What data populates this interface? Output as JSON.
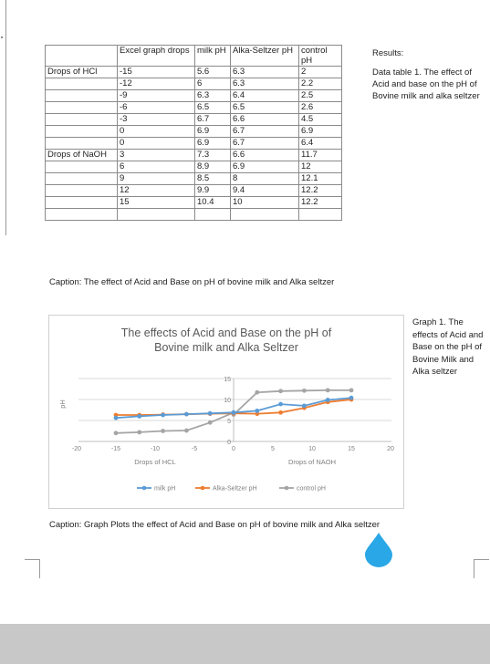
{
  "table": {
    "header": [
      "",
      "Excel graph drops",
      "milk pH",
      "Alka-Seltzer pH",
      "control pH"
    ],
    "rows": [
      [
        "Drops of HCl",
        "-15",
        "5.6",
        "6.3",
        "2"
      ],
      [
        "",
        "-12",
        "6",
        "6.3",
        "2.2"
      ],
      [
        "",
        "-9",
        "6.3",
        "6.4",
        "2.5"
      ],
      [
        "",
        "-6",
        "6.5",
        "6.5",
        "2.6"
      ],
      [
        "",
        "-3",
        "6.7",
        "6.6",
        "4.5"
      ],
      [
        "",
        "0",
        "6.9",
        "6.7",
        "6.9"
      ],
      [
        "",
        "0",
        "6.9",
        "6.7",
        "6.4"
      ],
      [
        "Drops of NaOH",
        "3",
        "7.3",
        "6.6",
        "11.7"
      ],
      [
        "",
        "6",
        "8.9",
        "6.9",
        "12"
      ],
      [
        "",
        "9",
        "8.5",
        "8",
        "12.1"
      ],
      [
        "",
        "12",
        "9.9",
        "9.4",
        "12.2"
      ],
      [
        "",
        "15",
        "10.4",
        "10",
        "12.2"
      ],
      [
        "",
        "",
        "",
        "",
        ""
      ]
    ]
  },
  "results": {
    "title": "Results:",
    "text": "Data table 1.  The effect of Acid and base on the pH of Bovine milk and alka seltzer"
  },
  "caption1": "Caption: The effect of Acid and Base on pH of bovine milk and Alka seltzer",
  "graph_note": "Graph 1. The effects of Acid and Base on the pH of Bovine Milk and Alka seltzer",
  "caption2": "Caption:  Graph Plots the effect of Acid and Base on pH of bovine milk and Alka seltzer",
  "colors": {
    "milk": "#5b9bd5",
    "alka": "#ed7d31",
    "control": "#a5a5a5",
    "drop": "#2aa7e6"
  },
  "icons": {
    "drop": "water-drop-icon"
  },
  "chart_data": {
    "type": "line",
    "title": "The effects of Acid and Base on the pH of Bovine milk and Alka Seltzer",
    "xlabel_left": "Drops of HCL",
    "xlabel_right": "Drops of NAOH",
    "ylabel": "pH",
    "xlim": [
      -20,
      20
    ],
    "ylim": [
      0,
      15
    ],
    "xticks": [
      "-20",
      "-15",
      "-10",
      "-5",
      "0",
      "5",
      "10",
      "15",
      "20"
    ],
    "yticks": [
      "0",
      "5",
      "10",
      "15"
    ],
    "x": [
      -15,
      -12,
      -9,
      -6,
      -3,
      0,
      0,
      3,
      6,
      9,
      12,
      15
    ],
    "series": [
      {
        "name": "milk pH",
        "values": [
          5.6,
          6,
          6.3,
          6.5,
          6.7,
          6.9,
          6.9,
          7.3,
          8.9,
          8.5,
          9.9,
          10.4
        ]
      },
      {
        "name": "Alka-Seltzer pH",
        "values": [
          6.3,
          6.3,
          6.4,
          6.5,
          6.6,
          6.7,
          6.7,
          6.6,
          6.9,
          8,
          9.4,
          10
        ]
      },
      {
        "name": "control pH",
        "values": [
          2,
          2.2,
          2.5,
          2.6,
          4.5,
          6.9,
          6.4,
          11.7,
          12,
          12.1,
          12.2,
          12.2
        ]
      }
    ],
    "grid": true,
    "legend": "bottom"
  }
}
